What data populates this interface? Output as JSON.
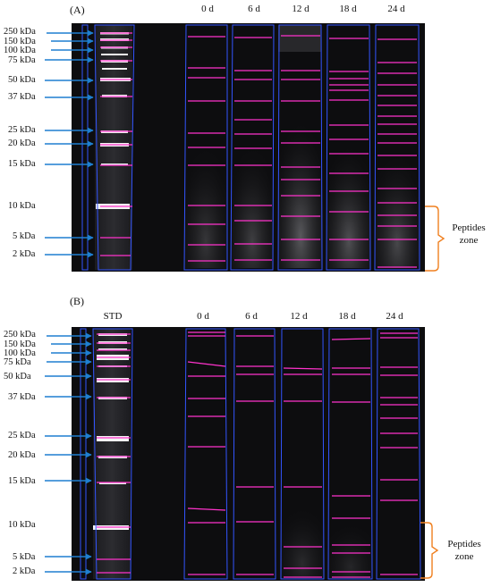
{
  "panels": [
    {
      "label": "(A)",
      "std_label": "",
      "columns": [
        "0 d",
        "6 d",
        "12 d",
        "18 d",
        "24 d"
      ],
      "markers": [
        "250 kDa",
        "150 kDa",
        "100 kDa",
        "75 kDa",
        "50 kDa",
        "37 kDa",
        "25 kDa",
        "20 kDa",
        "15 kDa",
        "10 kDa",
        "5 kDa",
        "2 kDa"
      ],
      "peptides_zone": "Peptides\nzone"
    },
    {
      "label": "(B)",
      "std_label": "STD",
      "columns": [
        "0 d",
        "6 d",
        "12 d",
        "18 d",
        "24 d"
      ],
      "markers": [
        "250 kDa",
        "150 kDa",
        "100 kDa",
        "75 kDa",
        "50 kDa",
        "37 kDa",
        "25 kDa",
        "20 kDa",
        "15 kDa",
        "10 kDa",
        "5 kDa",
        "2 kDa"
      ],
      "peptides_zone": "Peptides\nzone"
    }
  ],
  "colors": {
    "band": "#ff33cc",
    "lane": "#3355ff",
    "arrow": "#1f7fd0",
    "bracket": "#f08020",
    "gel": "#0d0d0f"
  }
}
